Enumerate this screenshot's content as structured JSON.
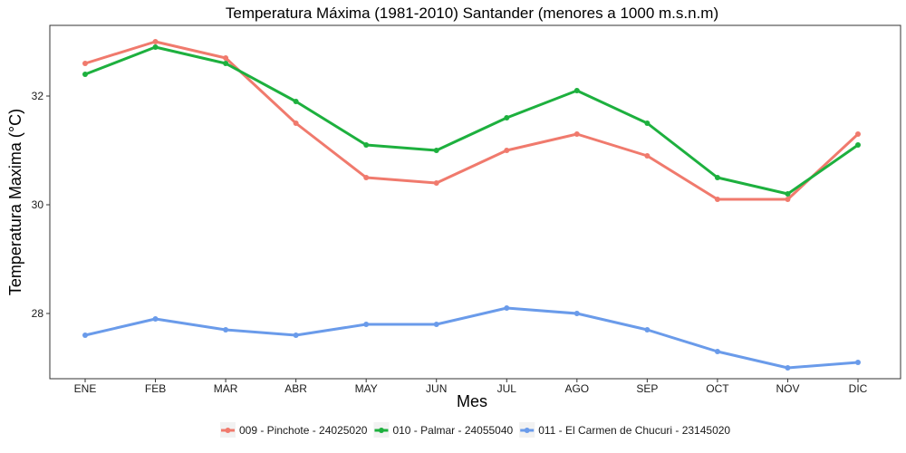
{
  "chart_data": {
    "type": "line",
    "title": "Temperatura Máxima (1981-2010) Santander (menores a 1000 m.s.n.m)",
    "xlabel": "Mes",
    "ylabel": "Temperatura Maxima (°C)",
    "categories": [
      "ENE",
      "FEB",
      "MAR",
      "ABR",
      "MAY",
      "JUN",
      "JUL",
      "AGO",
      "SEP",
      "OCT",
      "NOV",
      "DIC"
    ],
    "ylim": [
      26.8,
      33.3
    ],
    "yticks": [
      28,
      30,
      32
    ],
    "grid": false,
    "legend_position": "bottom",
    "series": [
      {
        "name": "009 - Pinchote - 24025020",
        "color": "#F07A6D",
        "values": [
          32.6,
          33.0,
          32.7,
          31.5,
          30.5,
          30.4,
          31.0,
          31.3,
          30.9,
          30.1,
          30.1,
          31.3
        ]
      },
      {
        "name": "010 - Palmar - 24055040",
        "color": "#1DB03E",
        "values": [
          32.4,
          32.9,
          32.6,
          31.9,
          31.1,
          31.0,
          31.6,
          32.1,
          31.5,
          30.5,
          30.2,
          31.1
        ]
      },
      {
        "name": "011 - El Carmen de Chucuri - 23145020",
        "color": "#6A9BEA",
        "values": [
          27.6,
          27.9,
          27.7,
          27.6,
          27.8,
          27.8,
          28.1,
          28.0,
          27.7,
          27.3,
          27.0,
          27.1
        ]
      }
    ]
  }
}
